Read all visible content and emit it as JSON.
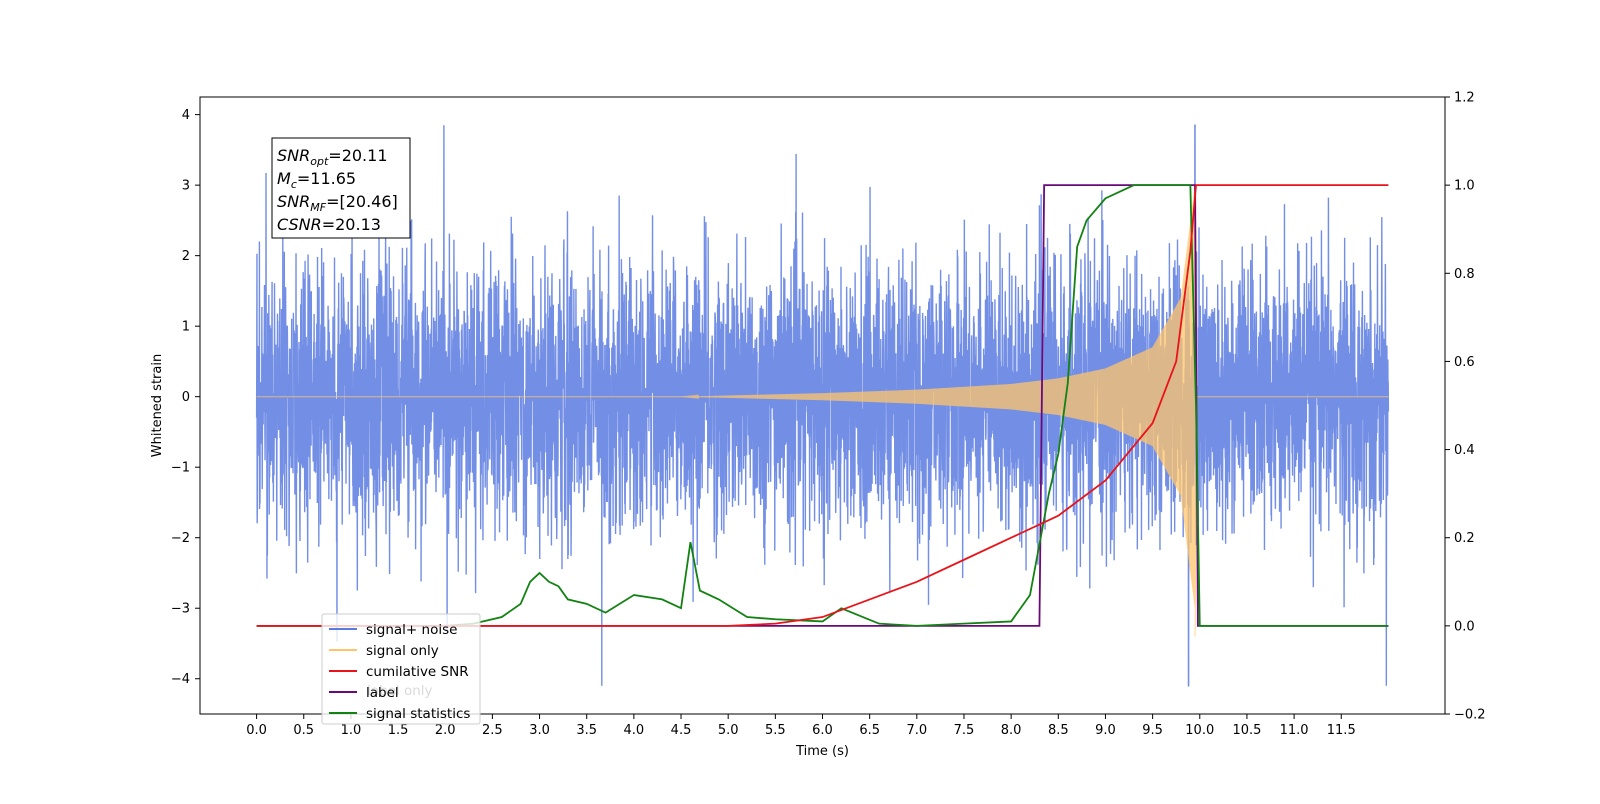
{
  "chart_data": {
    "type": "line",
    "xlabel": "Time (s)",
    "ylabel": "Whitened strain",
    "xlim": [
      -0.6,
      12.6
    ],
    "ylim": [
      -4.5,
      4.25
    ],
    "y2lim": [
      -0.2,
      1.2
    ],
    "x_ticks": [
      "0.0",
      "0.5",
      "1.0",
      "1.5",
      "2.0",
      "2.5",
      "3.0",
      "3.5",
      "4.0",
      "4.5",
      "5.0",
      "5.5",
      "6.0",
      "6.5",
      "7.0",
      "7.5",
      "8.0",
      "8.5",
      "9.0",
      "9.5",
      "10.0",
      "10.5",
      "11.0",
      "11.5"
    ],
    "y_ticks": [
      4,
      3,
      2,
      1,
      0,
      -1,
      -2,
      -3,
      -4
    ],
    "y2_ticks": [
      "1.2",
      "1.0",
      "0.8",
      "0.6",
      "0.4",
      "0.2",
      "0.0",
      "−0.2"
    ],
    "annotation": [
      {
        "base": "SNR",
        "sub": "opt",
        "rest": "=20.11"
      },
      {
        "base": "M",
        "sub": "c",
        "rest": "=11.65"
      },
      {
        "base": "SNR",
        "sub": "MF",
        "rest": "=[20.46]"
      },
      {
        "base": "CSNR",
        "sub": "",
        "rest": "=20.13"
      }
    ],
    "legend_position": "lower-left",
    "legend": [
      {
        "label": "signal+ noise",
        "color": "#5b7be0"
      },
      {
        "label": "signal only",
        "color": "#ffc46b"
      },
      {
        "label": "cumilative SNR",
        "color": "#e8141a"
      },
      {
        "label": "label",
        "color": "#6a0a7a"
      },
      {
        "label": "signal statistics",
        "color": "#128212"
      }
    ],
    "hidden_legend_text": "label only",
    "colors": {
      "noise": "#5b7be0",
      "signal": "#ffc46b",
      "cumulative_snr": "#e8141a",
      "label": "#6a0a7a",
      "statistics": "#128212"
    },
    "signal_plus_noise": {
      "axis": "left",
      "time_range": [
        0.0,
        12.0
      ],
      "approx_std": 0.9,
      "min": -4.1,
      "max": 3.85,
      "max_at": 9.95,
      "min_at": 9.88
    },
    "signal_only": {
      "axis": "left",
      "chirp_start": 4.5,
      "merger_time": 9.95,
      "peak_amplitude": 3.0,
      "amplitude_samples": {
        "t": [
          4.5,
          6.0,
          7.0,
          8.0,
          8.5,
          9.0,
          9.5,
          9.8,
          9.95
        ],
        "env": [
          0.0,
          0.05,
          0.1,
          0.18,
          0.26,
          0.4,
          0.7,
          1.4,
          3.0
        ]
      }
    },
    "cumulative_snr": {
      "axis": "right",
      "t": [
        0.0,
        5.0,
        5.5,
        6.0,
        6.5,
        7.0,
        7.5,
        8.0,
        8.5,
        9.0,
        9.5,
        9.75,
        9.9,
        9.96,
        10.0,
        12.0
      ],
      "v": [
        0.0,
        0.0,
        0.005,
        0.02,
        0.06,
        0.1,
        0.15,
        0.2,
        0.25,
        0.33,
        0.46,
        0.6,
        0.85,
        1.0,
        1.0,
        1.0
      ]
    },
    "label": {
      "axis": "right",
      "t": [
        0.0,
        8.3,
        8.35,
        9.95,
        9.98,
        12.0
      ],
      "v": [
        0.0,
        0.0,
        1.0,
        1.0,
        0.0,
        0.0
      ]
    },
    "signal_statistics": {
      "axis": "right",
      "t": [
        0.0,
        2.0,
        2.3,
        2.6,
        2.8,
        2.9,
        3.0,
        3.1,
        3.2,
        3.3,
        3.5,
        3.7,
        4.0,
        4.3,
        4.5,
        4.6,
        4.7,
        4.9,
        5.2,
        5.5,
        6.0,
        6.2,
        6.6,
        7.0,
        7.5,
        8.0,
        8.2,
        8.4,
        8.5,
        8.6,
        8.7,
        8.8,
        9.0,
        9.3,
        9.9,
        9.96,
        10.0,
        12.0
      ],
      "v": [
        0.0,
        0.0,
        0.005,
        0.02,
        0.05,
        0.1,
        0.12,
        0.1,
        0.09,
        0.06,
        0.05,
        0.03,
        0.07,
        0.06,
        0.04,
        0.19,
        0.08,
        0.06,
        0.02,
        0.015,
        0.01,
        0.04,
        0.005,
        0.0,
        0.005,
        0.01,
        0.07,
        0.3,
        0.39,
        0.55,
        0.86,
        0.92,
        0.97,
        1.0,
        1.0,
        0.5,
        0.0,
        0.0
      ]
    }
  }
}
